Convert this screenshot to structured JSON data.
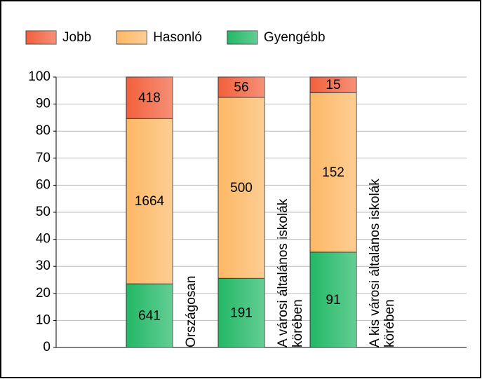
{
  "chart_data": {
    "type": "bar",
    "stacked": "percent",
    "categories": [
      "Országosan",
      "A városi általános iskolák körében",
      "A kis városi általános iskolák körében"
    ],
    "series": [
      {
        "name": "Gyengébb",
        "color": "#22b866",
        "values": [
          641,
          191,
          91
        ]
      },
      {
        "name": "Hasonló",
        "color": "#fdb865",
        "values": [
          1664,
          500,
          152
        ]
      },
      {
        "name": "Jobb",
        "color": "#f2603c",
        "values": [
          418,
          56,
          15
        ]
      }
    ],
    "legend_order": [
      "Jobb",
      "Hasonló",
      "Gyengébb"
    ],
    "ylim": [
      0,
      100
    ],
    "yticks": [
      0,
      10,
      20,
      30,
      40,
      50,
      60,
      70,
      80,
      90,
      100
    ],
    "grid": true
  }
}
